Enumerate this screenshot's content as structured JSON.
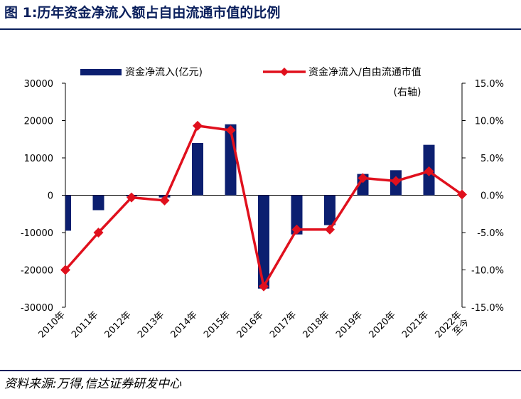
{
  "figure": {
    "title": "图 1:历年资金净流入额占自由流通市值的比例",
    "source": "资料来源:万得,信达证券研发中心"
  },
  "chart_data": {
    "type": "bar",
    "categories": [
      "2010年",
      "2011年",
      "2012年",
      "2013年",
      "2014年",
      "2015年",
      "2016年",
      "2017年",
      "2018年",
      "2019年",
      "2020年",
      "2021年",
      "2022年至今"
    ],
    "series": [
      {
        "name": "资金净流入(亿元)",
        "type": "bar",
        "axis": "left",
        "color": "#0c1f70",
        "values": [
          -9500,
          -4000,
          -300,
          -600,
          14000,
          19000,
          -25000,
          -10500,
          -8000,
          5700,
          6700,
          13500,
          0
        ]
      },
      {
        "name": "资金净流入/自由流通市值",
        "axis_note": "(右轴)",
        "type": "line",
        "axis": "right",
        "color": "#e0101d",
        "unit": "%",
        "values": [
          -10.0,
          -5.0,
          -0.3,
          -0.7,
          9.3,
          8.7,
          -12.2,
          -4.6,
          -4.6,
          2.3,
          1.9,
          3.2,
          0.1
        ]
      }
    ],
    "y_left": {
      "ylim": [
        -30000,
        30000
      ],
      "ticks": [
        "-30000",
        "-20000",
        "-10000",
        "0",
        "10000",
        "20000",
        "30000"
      ]
    },
    "y_right": {
      "ylim": [
        -15,
        15
      ],
      "ticks": [
        "-15.0%",
        "-10.0%",
        "-5.0%",
        "0.0%",
        "5.0%",
        "10.0%",
        "15.0%"
      ]
    },
    "legend": "top",
    "grid": false
  }
}
